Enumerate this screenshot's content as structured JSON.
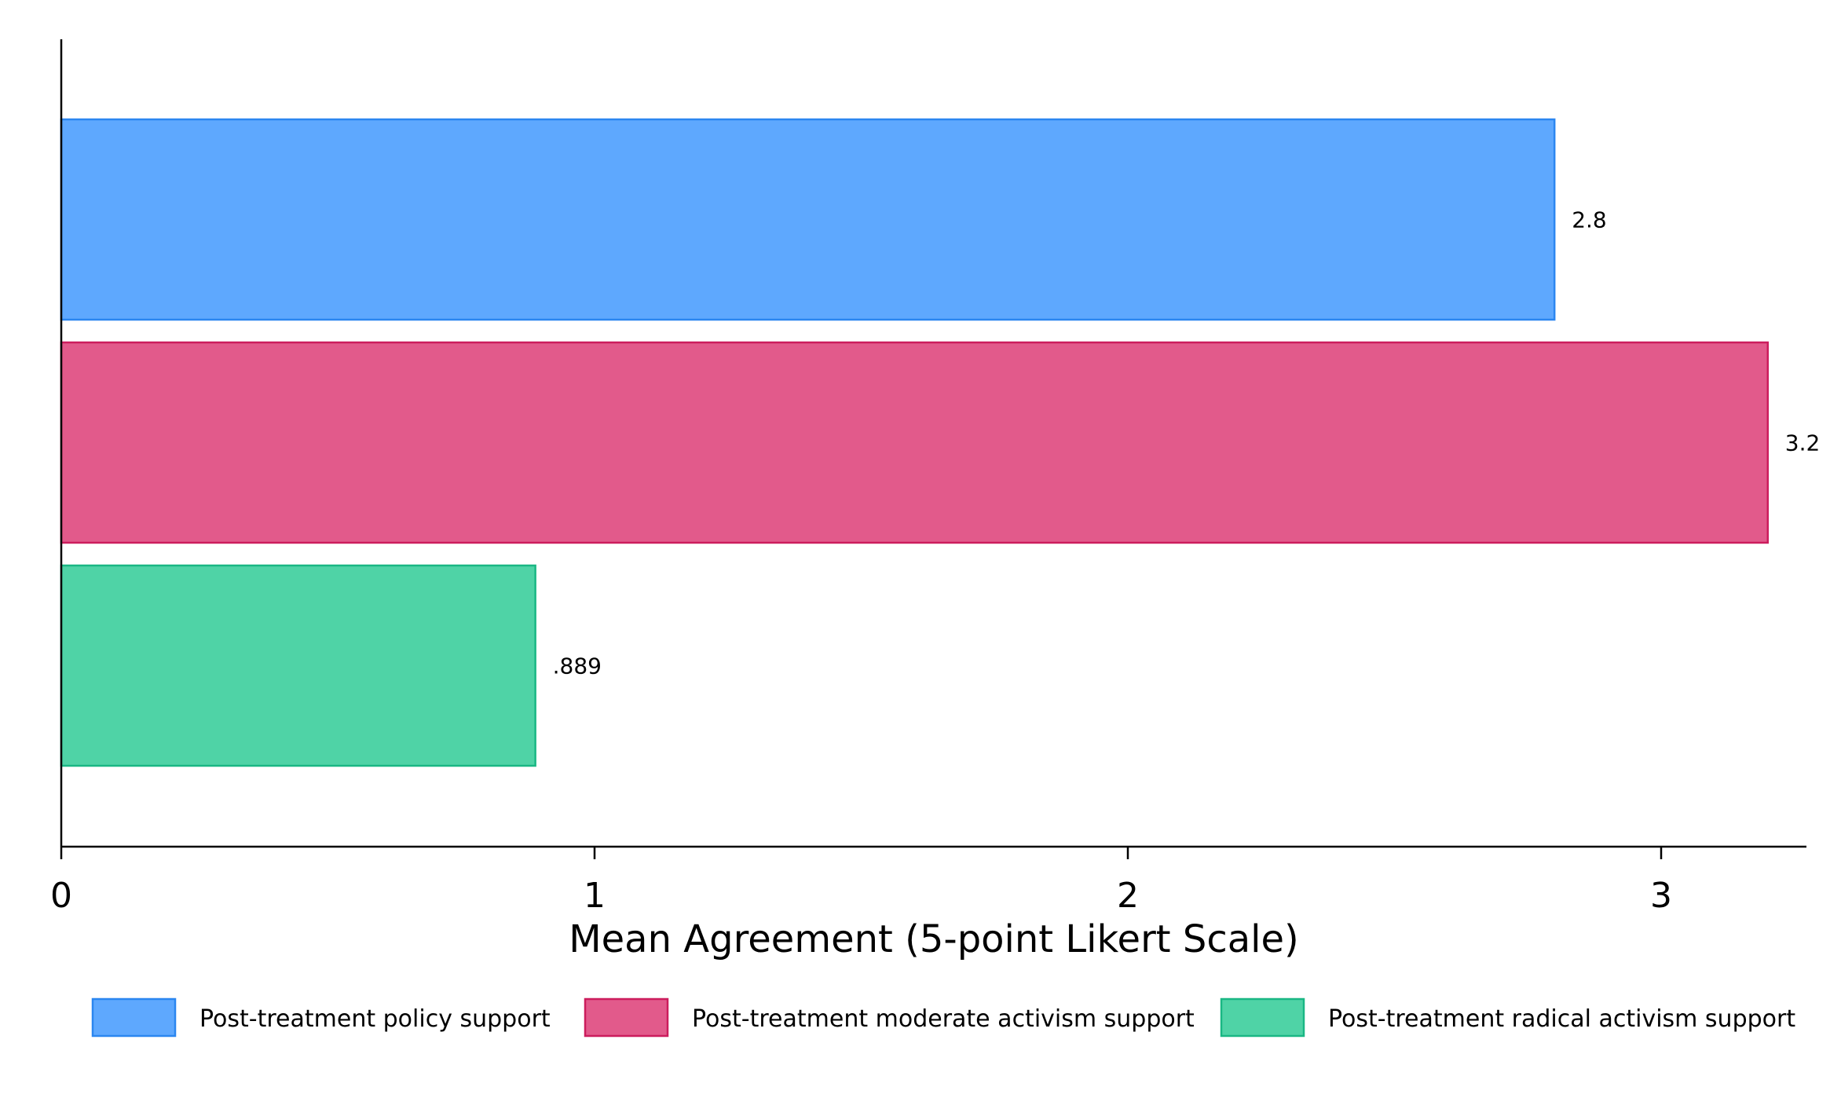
{
  "chart_data": {
    "type": "bar",
    "orientation": "horizontal",
    "title": "",
    "xlabel": "Mean Agreement (5-point Likert Scale)",
    "ylabel": "",
    "xlim": [
      0,
      3.27
    ],
    "xticks": [
      0,
      1,
      2,
      3
    ],
    "xtick_labels": [
      "0",
      "1",
      "2",
      "3"
    ],
    "grid": false,
    "legend_position": "bottom",
    "series": [
      {
        "name": "Post-treatment policy support",
        "value": 2.8,
        "label": "2.8",
        "fill": "#5ea8fe",
        "stroke": "#2b86f0"
      },
      {
        "name": "Post-treatment moderate activism support",
        "value": 3.2,
        "label": "3.2",
        "fill": "#e25a8b",
        "stroke": "#cc1d5d"
      },
      {
        "name": "Post-treatment radical activism support",
        "value": 0.889,
        "label": ".889",
        "fill": "#4fd3a6",
        "stroke": "#1ab784"
      }
    ]
  }
}
